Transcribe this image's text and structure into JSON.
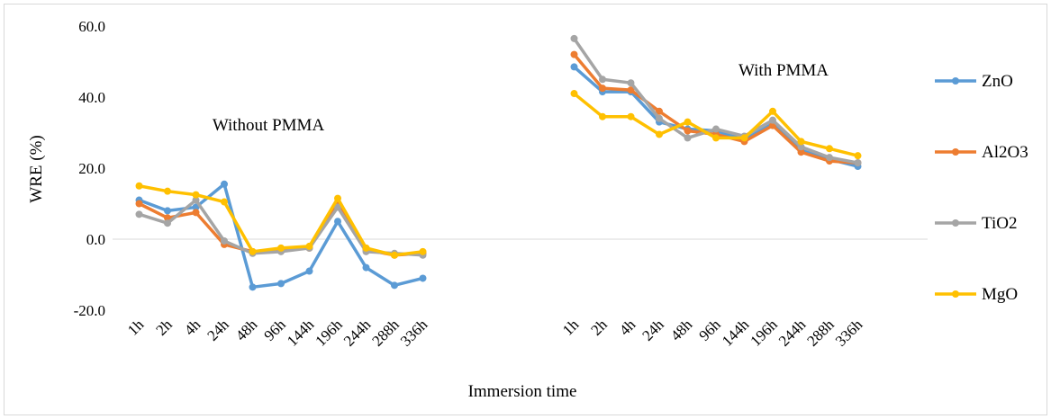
{
  "chart_data": {
    "type": "line",
    "xlabel": "Immersion time",
    "ylabel": "WRE (%)",
    "ylim": [
      -20,
      60
    ],
    "yticks": [
      "60.0",
      "40.0",
      "20.0",
      "0.0",
      "-20.0"
    ],
    "ytick_values": [
      60,
      40,
      20,
      0,
      -20
    ],
    "grid": "horizontal zero line only",
    "legend_position": "right",
    "groups": [
      {
        "label": "Without PMMA",
        "categories": [
          "1h",
          "2h",
          "4h",
          "24h",
          "48h",
          "96h",
          "144h",
          "196h",
          "244h",
          "288h",
          "336h"
        ],
        "series": [
          {
            "name": "ZnO",
            "values": [
              11,
              8,
              9,
              15.5,
              -13.5,
              -12.5,
              -9,
              5,
              -8,
              -13,
              -11
            ]
          },
          {
            "name": "Al2O3",
            "values": [
              10,
              6,
              7.5,
              -1.5,
              -3.5,
              -3,
              -2.5,
              10,
              -3,
              -4.5,
              -4
            ]
          },
          {
            "name": "TiO2",
            "values": [
              7,
              4.5,
              11,
              -0.5,
              -4,
              -3.5,
              -2.5,
              9,
              -3.5,
              -4,
              -4.5
            ]
          },
          {
            "name": "MgO",
            "values": [
              15,
              13.5,
              12.5,
              10.5,
              -3.5,
              -2.5,
              -2,
              11.5,
              -2.5,
              -4.5,
              -3.5
            ]
          }
        ]
      },
      {
        "label": "With PMMA",
        "categories": [
          "1h",
          "2h",
          "4h",
          "24h",
          "48h",
          "96h",
          "144h",
          "196h",
          "244h",
          "288h",
          "336h"
        ],
        "series": [
          {
            "name": "ZnO",
            "values": [
              48.5,
              41.5,
              41.5,
              33,
              31,
              30.5,
              28,
              32.5,
              25,
              22.5,
              20.5
            ]
          },
          {
            "name": "Al2O3",
            "values": [
              52,
              42.5,
              42,
              36,
              30.5,
              29.5,
              27.5,
              32,
              24.5,
              22,
              21.5
            ]
          },
          {
            "name": "TiO2",
            "values": [
              56.5,
              45,
              44,
              34,
              28.5,
              31,
              29,
              33.5,
              26,
              23,
              21.5
            ]
          },
          {
            "name": "MgO",
            "values": [
              41,
              34.5,
              34.5,
              29.5,
              33,
              28.5,
              28.5,
              36,
              27.5,
              25.5,
              23.5
            ]
          }
        ]
      }
    ]
  },
  "colors": {
    "ZnO": "#5B9BD5",
    "Al2O3": "#ED7D31",
    "TiO2": "#A5A5A5",
    "MgO": "#FFC000",
    "zero_line": "#D9D9D9",
    "frame": "#D9D9D9"
  },
  "legend": [
    {
      "key": "ZnO",
      "label": "ZnO"
    },
    {
      "key": "Al2O3",
      "label": "Al2O3"
    },
    {
      "key": "TiO2",
      "label": "TiO2"
    },
    {
      "key": "MgO",
      "label": "MgO"
    }
  ]
}
